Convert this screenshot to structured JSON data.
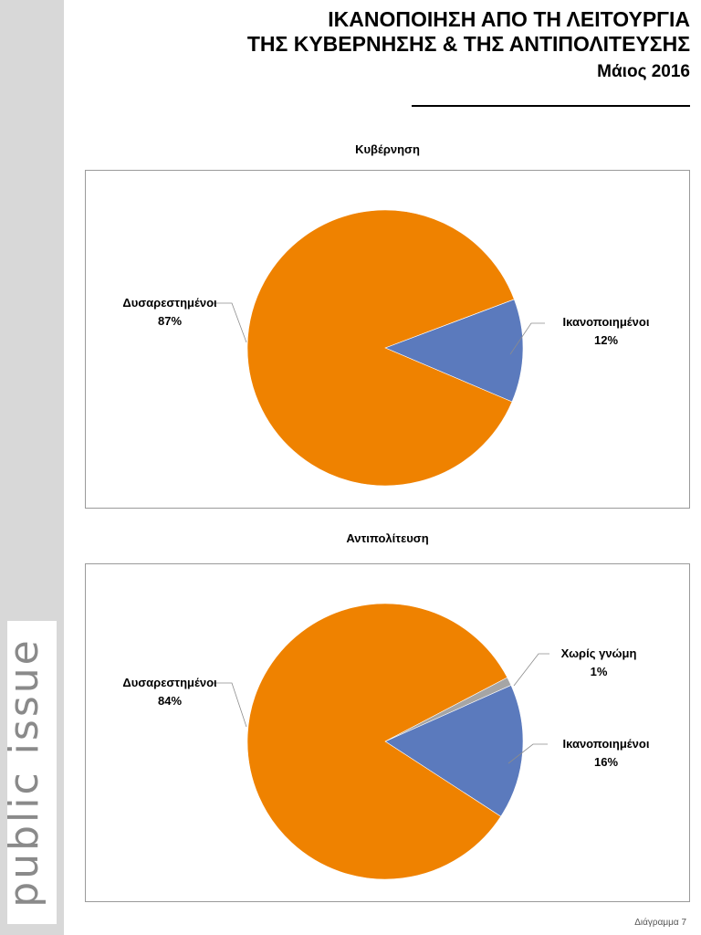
{
  "header": {
    "title_line1": "ΙΚΑΝΟΠΟΙΗΣΗ ΑΠΟ ΤΗ ΛΕΙΤΟΥΡΓΙΑ",
    "title_line2": "ΤΗΣ ΚΥΒΕΡΝΗΣΗΣ & ΤΗΣ ΑΝΤΙΠΟΛΙΤΕΥΣΗΣ",
    "date": "Μάιος 2016"
  },
  "brand": {
    "text": "public issue"
  },
  "footer": {
    "label": "Διάγραμμα 7"
  },
  "colors": {
    "orange": "#ef8200",
    "blue": "#5b7abd",
    "gray": "#a5a5a5"
  },
  "chart_data": [
    {
      "type": "pie",
      "title": "Κυβέρνηση",
      "slices": [
        {
          "label": "Ικανοποιημένοι",
          "value": 12,
          "display": "12%",
          "color": "#5b7abd"
        },
        {
          "label": "Δυσαρεστημένοι",
          "value": 87,
          "display": "87%",
          "color": "#ef8200"
        }
      ]
    },
    {
      "type": "pie",
      "title": "Αντιπολίτευση",
      "slices": [
        {
          "label": "Ικανοποιημένοι",
          "value": 16,
          "display": "16%",
          "color": "#5b7abd"
        },
        {
          "label": "Δυσαρεστημένοι",
          "value": 84,
          "display": "84%",
          "color": "#ef8200"
        },
        {
          "label": "Χωρίς γνώμη",
          "value": 1,
          "display": "1%",
          "color": "#a5a5a5"
        }
      ]
    }
  ]
}
